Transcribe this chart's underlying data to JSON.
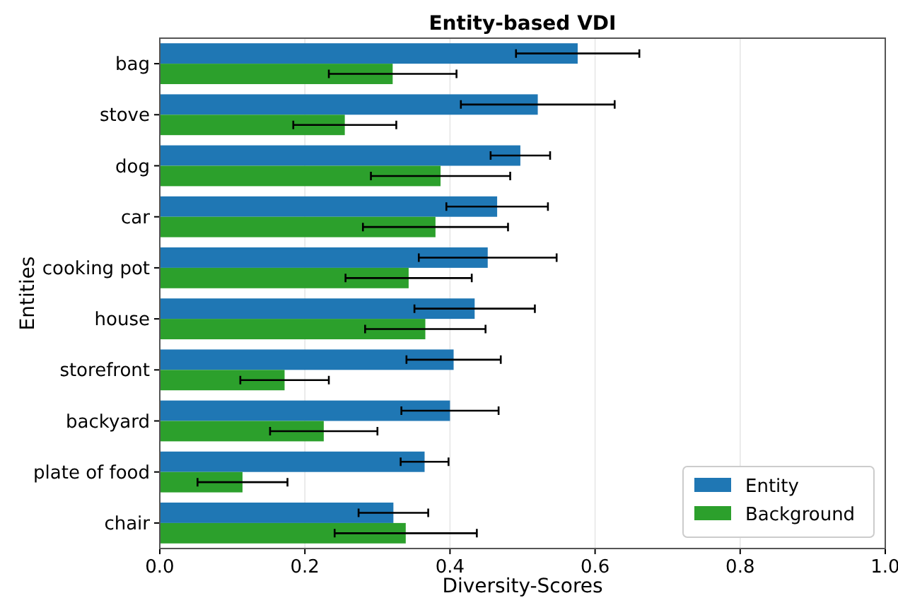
{
  "chart_data": {
    "type": "bar",
    "orientation": "horizontal",
    "title": "Entity-based VDI",
    "xlabel": "Diversity-Scores",
    "ylabel": "Entities",
    "categories": [
      "bag",
      "stove",
      "dog",
      "car",
      "cooking pot",
      "house",
      "storefront",
      "backyard",
      "plate of food",
      "chair"
    ],
    "series": [
      {
        "name": "Entity",
        "color": "#1f77b4",
        "values": [
          0.576,
          0.521,
          0.497,
          0.465,
          0.452,
          0.434,
          0.405,
          0.4,
          0.365,
          0.322
        ],
        "errors": [
          0.085,
          0.106,
          0.041,
          0.07,
          0.095,
          0.083,
          0.065,
          0.067,
          0.033,
          0.048
        ]
      },
      {
        "name": "Background",
        "color": "#2ca02c",
        "values": [
          0.321,
          0.255,
          0.387,
          0.38,
          0.343,
          0.366,
          0.172,
          0.226,
          0.114,
          0.339
        ],
        "errors": [
          0.088,
          0.071,
          0.096,
          0.1,
          0.087,
          0.083,
          0.061,
          0.074,
          0.062,
          0.098
        ]
      }
    ],
    "xlim": [
      0,
      1
    ],
    "xticks": [
      {
        "value": 0,
        "label": "0.0"
      },
      {
        "value": 0.2,
        "label": "0.2"
      },
      {
        "value": 0.4,
        "label": "0.4"
      },
      {
        "value": 0.6,
        "label": "0.6"
      },
      {
        "value": 0.8,
        "label": "0.8"
      },
      {
        "value": 1,
        "label": "1.0"
      }
    ],
    "grid": "x",
    "legend": "bottom right"
  }
}
